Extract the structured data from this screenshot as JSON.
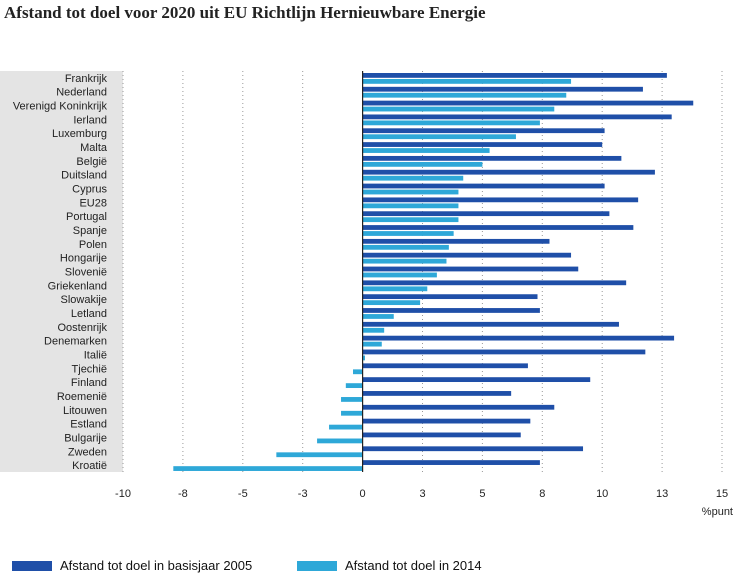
{
  "chart_data": {
    "type": "bar",
    "orientation": "horizontal",
    "title": "Afstand tot doel voor 2020 uit EU Richtlijn Hernieuwbare Energie",
    "xlabel": "%punt",
    "xlim": [
      -10,
      15
    ],
    "xticks": [
      -10,
      -8,
      -5,
      -3,
      0,
      3,
      5,
      8,
      10,
      13,
      15
    ],
    "xtick_values": [
      -10,
      -7.5,
      -5,
      -2.5,
      0,
      2.5,
      5,
      7.5,
      10,
      12.5,
      15
    ],
    "categories": [
      "Frankrijk",
      "Nederland",
      "Verenigd Koninkrijk",
      "Ierland",
      "Luxemburg",
      "Malta",
      "België",
      "Duitsland",
      "Cyprus",
      "EU28",
      "Portugal",
      "Spanje",
      "Polen",
      "Hongarije",
      "Slovenië",
      "Griekenland",
      "Slowakije",
      "Letland",
      "Oostenrijk",
      "Denemarken",
      "Italië",
      "Tjechië",
      "Finland",
      "Roemenië",
      "Litouwen",
      "Estland",
      "Bulgarije",
      "Zweden",
      "Kroatië"
    ],
    "series": [
      {
        "name": "Afstand tot doel in basisjaar 2005",
        "color": "#1f4fa8",
        "values": [
          12.7,
          11.7,
          13.8,
          12.9,
          10.1,
          10.0,
          10.8,
          12.2,
          10.1,
          11.5,
          10.3,
          11.3,
          7.8,
          8.7,
          9.0,
          11.0,
          7.3,
          7.4,
          10.7,
          13.0,
          11.8,
          6.9,
          9.5,
          6.2,
          8.0,
          7.0,
          6.6,
          9.2,
          7.4
        ]
      },
      {
        "name": "Afstand tot doel in 2014",
        "color": "#2ea8d8",
        "values": [
          8.7,
          8.5,
          8.0,
          7.4,
          6.4,
          5.3,
          5.0,
          4.2,
          4.0,
          4.0,
          4.0,
          3.8,
          3.6,
          3.5,
          3.1,
          2.7,
          2.4,
          1.3,
          0.9,
          0.8,
          0.1,
          -0.4,
          -0.7,
          -0.9,
          -0.9,
          -1.4,
          -1.9,
          -3.6,
          -7.9
        ]
      }
    ],
    "legend_position": "bottom",
    "grid": "vertical dotted"
  }
}
